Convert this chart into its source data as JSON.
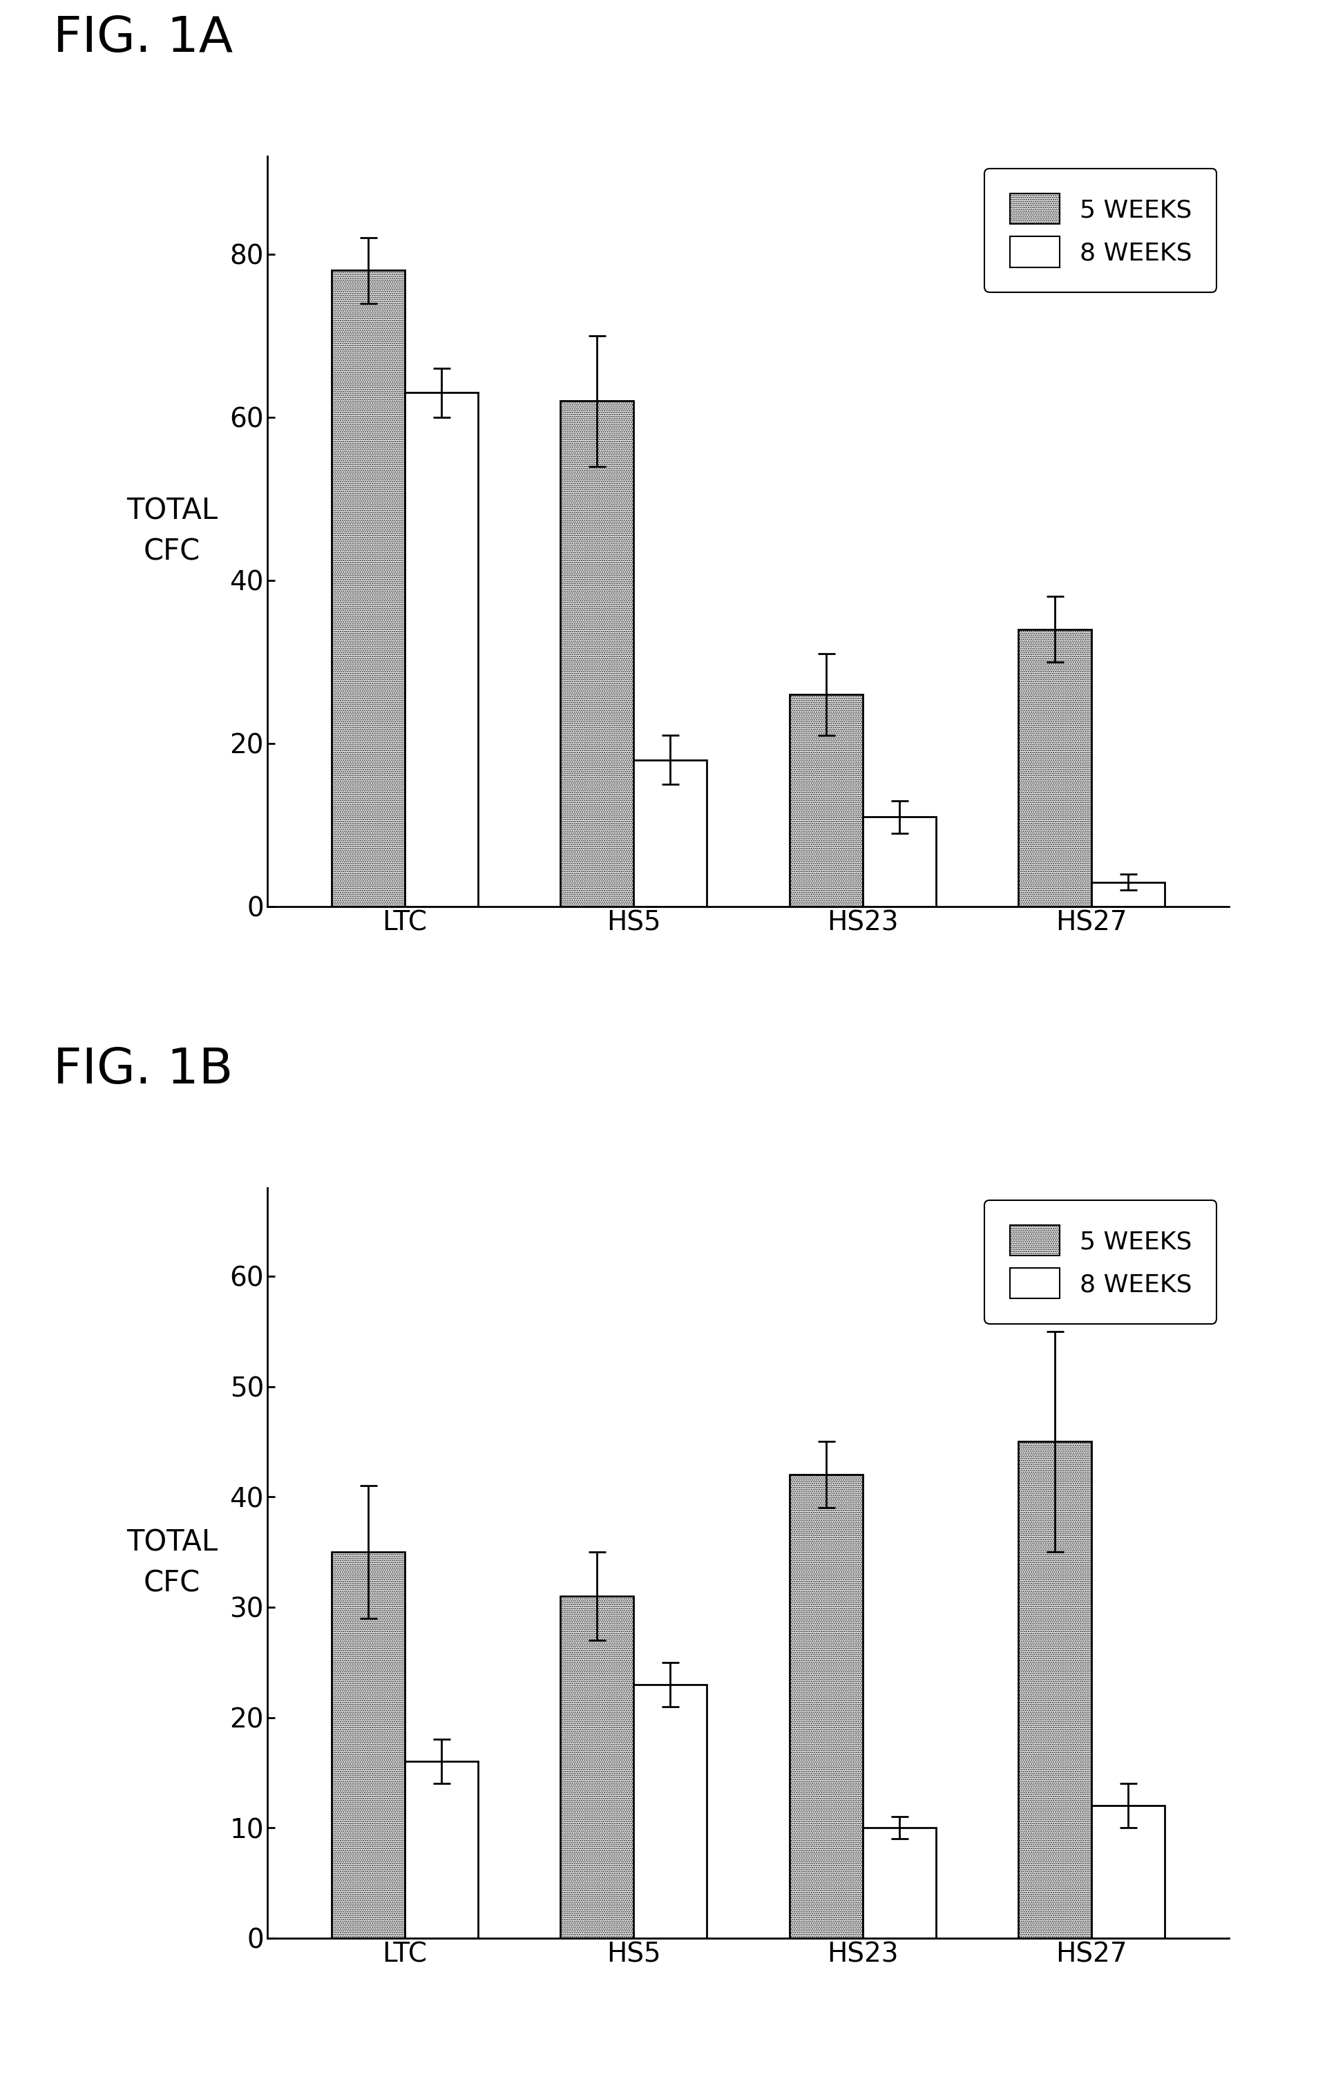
{
  "fig1A": {
    "title": "FIG. 1A",
    "categories": [
      "LTC",
      "HS5",
      "HS23",
      "HS27"
    ],
    "bar5weeks": [
      78,
      62,
      26,
      34
    ],
    "bar8weeks": [
      63,
      18,
      11,
      3
    ],
    "err5weeks": [
      4,
      8,
      5,
      4
    ],
    "err8weeks": [
      3,
      3,
      2,
      1
    ],
    "ylim": [
      0,
      92
    ],
    "yticks": [
      0,
      20,
      40,
      60,
      80
    ],
    "ylabel": "TOTAL\nCFC"
  },
  "fig1B": {
    "title": "FIG. 1B",
    "categories": [
      "LTC",
      "HS5",
      "HS23",
      "HS27"
    ],
    "bar5weeks": [
      35,
      31,
      42,
      45
    ],
    "bar8weeks": [
      16,
      23,
      10,
      12
    ],
    "err5weeks": [
      6,
      4,
      3,
      10
    ],
    "err8weeks": [
      2,
      2,
      1,
      2
    ],
    "ylim": [
      0,
      68
    ],
    "yticks": [
      0,
      10,
      20,
      30,
      40,
      50,
      60
    ],
    "ylabel": "TOTAL\nCFC"
  },
  "legend_labels": [
    "5 WEEKS",
    "8 WEEKS"
  ],
  "bar_width": 0.32,
  "edge_color": "#000000",
  "background_color": "#ffffff",
  "title_fontsize": 52,
  "label_fontsize": 30,
  "tick_fontsize": 28,
  "legend_fontsize": 26
}
